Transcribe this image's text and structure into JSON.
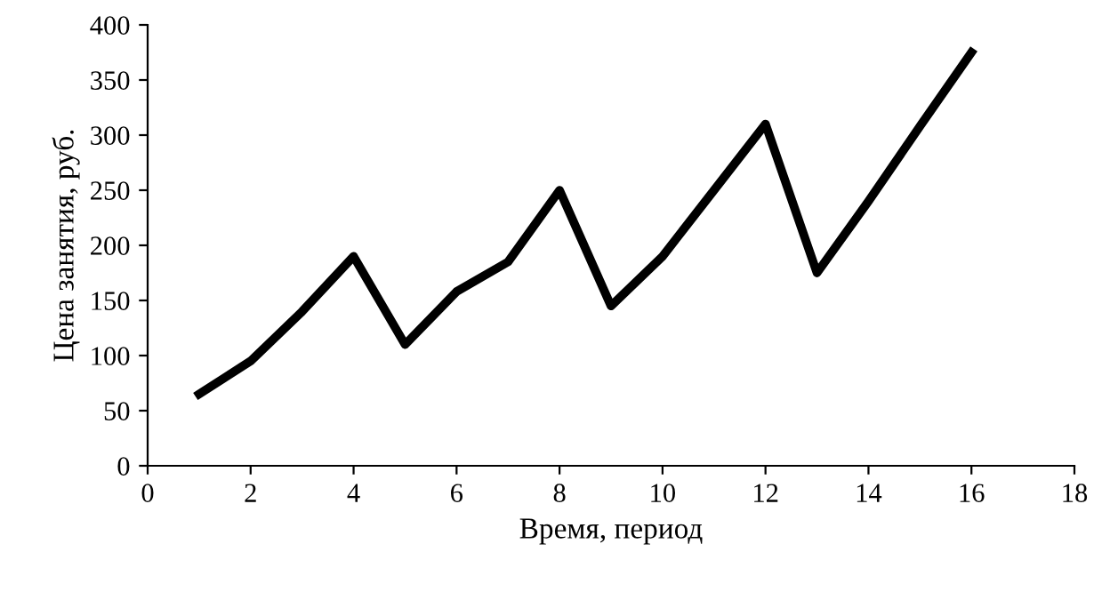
{
  "chart_data": {
    "type": "line",
    "xlabel": "Время, период",
    "ylabel": "Цена занятия, руб.",
    "x": [
      1,
      2,
      3,
      4,
      5,
      6,
      7,
      8,
      9,
      10,
      11,
      12,
      13,
      14,
      15,
      16
    ],
    "series": [
      {
        "color": "#000000",
        "values": [
          65,
          95,
          140,
          190,
          110,
          158,
          185,
          250,
          145,
          190,
          250,
          310,
          175,
          240,
          308,
          375
        ]
      }
    ],
    "xlim": [
      0,
      18
    ],
    "xticks": [
      0,
      2,
      4,
      6,
      8,
      10,
      12,
      14,
      16,
      18
    ],
    "ylim": [
      0,
      400
    ],
    "yticks": [
      0,
      50,
      100,
      150,
      200,
      250,
      300,
      350,
      400
    ],
    "grid": false,
    "legend": false,
    "marker": "none",
    "line_style": "solid"
  }
}
